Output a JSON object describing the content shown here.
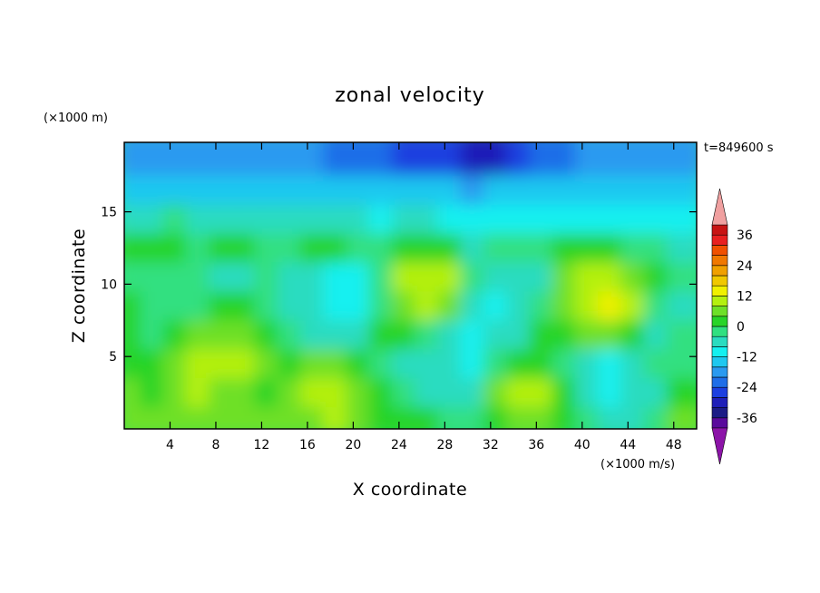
{
  "chart_data": {
    "type": "heatmap",
    "title": "zonal velocity",
    "xlabel": "X coordinate",
    "ylabel": "Z coordinate",
    "x_unit": "(×1000 m/s)",
    "y_unit": "(×1000 m)",
    "time_label": "t=849600 s",
    "xlim": [
      0,
      50
    ],
    "ylim": [
      0,
      19.8
    ],
    "x_ticks": [
      "4",
      "8",
      "12",
      "16",
      "20",
      "24",
      "28",
      "32",
      "36",
      "40",
      "44",
      "48"
    ],
    "y_ticks": [
      "5",
      "10",
      "15"
    ],
    "x_grid": [
      1,
      3,
      5,
      7,
      9,
      11,
      13,
      15,
      17,
      19,
      21,
      23,
      25,
      27,
      29,
      31,
      33,
      35,
      37,
      39,
      41,
      43,
      45,
      47,
      49
    ],
    "z_grid": [
      1,
      3,
      5,
      7,
      9,
      11,
      13,
      15,
      17,
      19
    ],
    "values": [
      [
        6,
        4,
        6,
        4,
        4,
        6,
        6,
        4,
        6,
        8,
        6,
        2,
        0,
        0,
        -4,
        -4,
        0,
        6,
        4,
        0,
        -4,
        -8,
        -6,
        -4,
        4
      ],
      [
        4,
        0,
        4,
        8,
        6,
        4,
        2,
        6,
        10,
        8,
        6,
        0,
        -4,
        -6,
        -8,
        -6,
        4,
        10,
        8,
        2,
        -6,
        -10,
        -8,
        -6,
        0
      ],
      [
        2,
        2,
        4,
        8,
        10,
        8,
        4,
        2,
        4,
        4,
        2,
        -2,
        -6,
        -8,
        -8,
        -10,
        -4,
        2,
        2,
        -4,
        -8,
        -10,
        -6,
        -4,
        -2
      ],
      [
        0,
        -2,
        0,
        4,
        6,
        4,
        0,
        -4,
        -6,
        -8,
        -6,
        2,
        2,
        -4,
        -8,
        -10,
        -8,
        -6,
        0,
        2,
        6,
        6,
        2,
        -6,
        -4
      ],
      [
        0,
        -4,
        -4,
        -2,
        0,
        0,
        -4,
        -6,
        -8,
        -10,
        -12,
        -4,
        6,
        8,
        6,
        -6,
        -10,
        -8,
        -4,
        6,
        10,
        14,
        8,
        -4,
        -6
      ],
      [
        -2,
        -4,
        -2,
        -4,
        -6,
        -6,
        -4,
        -6,
        -8,
        -10,
        -12,
        -2,
        8,
        10,
        8,
        -4,
        -8,
        -6,
        -6,
        4,
        8,
        10,
        6,
        0,
        -4
      ],
      [
        0,
        2,
        0,
        -2,
        0,
        0,
        -4,
        -2,
        2,
        0,
        -4,
        -4,
        0,
        2,
        0,
        -6,
        -4,
        -2,
        -4,
        0,
        2,
        2,
        -2,
        -4,
        -6
      ],
      [
        -8,
        -6,
        -4,
        -6,
        -8,
        -6,
        -6,
        -8,
        -6,
        -8,
        -8,
        -10,
        -8,
        -8,
        -10,
        -12,
        -12,
        -10,
        -10,
        -12,
        -12,
        -10,
        -10,
        -10,
        -10
      ],
      [
        -16,
        -16,
        -16,
        -14,
        -14,
        -14,
        -14,
        -16,
        -14,
        -14,
        -14,
        -16,
        -14,
        -16,
        -16,
        -18,
        -16,
        -16,
        -14,
        -16,
        -16,
        -14,
        -14,
        -14,
        -14
      ],
      [
        -20,
        -20,
        -20,
        -20,
        -20,
        -20,
        -20,
        -20,
        -20,
        -22,
        -22,
        -24,
        -26,
        -26,
        -28,
        -30,
        -30,
        -28,
        -24,
        -22,
        -20,
        -20,
        -20,
        -20,
        -20
      ]
    ],
    "colorbar": {
      "levels": [
        -40,
        -36,
        -32,
        -28,
        -24,
        -20,
        -16,
        -12,
        -8,
        -4,
        0,
        4,
        8,
        12,
        16,
        20,
        24,
        28,
        32,
        36,
        40
      ],
      "colors": [
        "#5a0a9c",
        "#1c1c86",
        "#1f1fb8",
        "#1c3fe0",
        "#1f6ee8",
        "#2a9af0",
        "#1ec8f0",
        "#14f0f0",
        "#2adcc0",
        "#30e080",
        "#28d428",
        "#6ee028",
        "#b4f010",
        "#f0f000",
        "#f0c800",
        "#f0a000",
        "#f07800",
        "#f05000",
        "#e82020",
        "#c81414"
      ],
      "under_color": "#8c14a8",
      "over_color": "#f0a0a0",
      "tick_labels": [
        "36",
        "24",
        "12",
        "0",
        "-12",
        "-24",
        "-36"
      ],
      "tick_values": [
        36,
        24,
        12,
        0,
        -12,
        -24,
        -36
      ]
    }
  }
}
